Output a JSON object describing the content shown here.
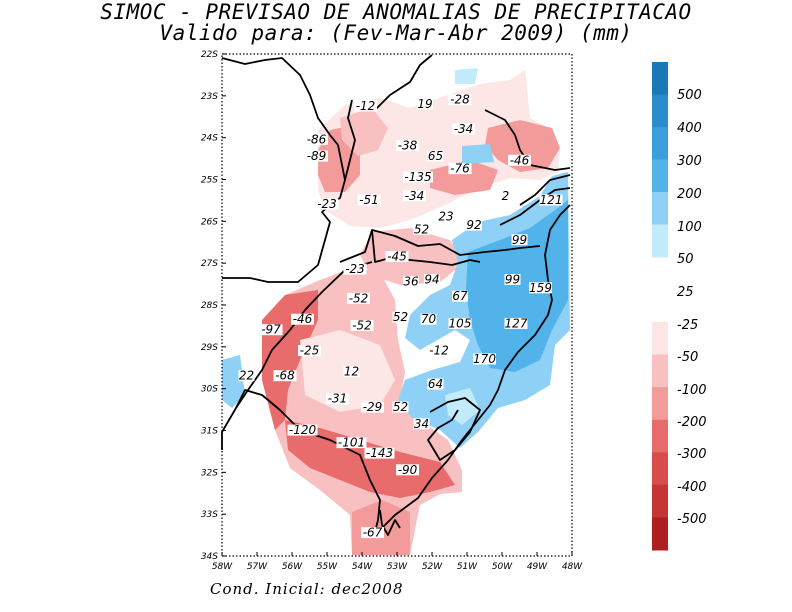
{
  "title": {
    "line1": "SIMOC - PREVISAO DE ANOMALIAS DE PRECIPITACAO",
    "line2": "Valido para: (Fev-Mar-Abr 2009) (mm)"
  },
  "footer": "Cond. Inicial: dec2008",
  "map": {
    "lat_labels": [
      "22S",
      "23S",
      "24S",
      "25S",
      "26S",
      "27S",
      "28S",
      "29S",
      "30S",
      "31S",
      "32S",
      "33S",
      "34S"
    ],
    "lon_labels": [
      "58W",
      "57W",
      "56W",
      "55W",
      "54W",
      "53W",
      "52W",
      "51W",
      "50W",
      "49W",
      "48W"
    ],
    "lat_values": [
      -22,
      -23,
      -24,
      -25,
      -26,
      -27,
      -28,
      -29,
      -30,
      -31,
      -32,
      -33,
      -34
    ],
    "lon_values": [
      -58,
      -57,
      -56,
      -55,
      -54,
      -53,
      -52,
      -51,
      -50,
      -49,
      -48
    ],
    "anomaly_values": [
      {
        "text": "-12",
        "lon": -53.9,
        "lat": -23.3
      },
      {
        "text": "19",
        "lon": -52.2,
        "lat": -23.25
      },
      {
        "text": "-28",
        "lon": -51.2,
        "lat": -23.15
      },
      {
        "text": "-34",
        "lon": -51.1,
        "lat": -23.85
      },
      {
        "text": "-86",
        "lon": -55.3,
        "lat": -24.1
      },
      {
        "text": "-89",
        "lon": -55.3,
        "lat": -24.5
      },
      {
        "text": "-38",
        "lon": -52.7,
        "lat": -24.25
      },
      {
        "text": "65",
        "lon": -51.9,
        "lat": -24.5
      },
      {
        "text": "-46",
        "lon": -49.5,
        "lat": -24.6
      },
      {
        "text": "-76",
        "lon": -51.2,
        "lat": -24.8
      },
      {
        "text": "-135",
        "lon": -52.4,
        "lat": -25.0
      },
      {
        "text": "-51",
        "lon": -53.8,
        "lat": -25.55
      },
      {
        "text": "-34",
        "lon": -52.5,
        "lat": -25.45
      },
      {
        "text": "2",
        "lon": -49.9,
        "lat": -25.45
      },
      {
        "text": "121",
        "lon": -48.6,
        "lat": -25.55
      },
      {
        "text": "-23",
        "lon": -55.0,
        "lat": -25.65
      },
      {
        "text": "23",
        "lon": -51.6,
        "lat": -25.95
      },
      {
        "text": "92",
        "lon": -50.8,
        "lat": -26.15
      },
      {
        "text": "52",
        "lon": -52.3,
        "lat": -26.25
      },
      {
        "text": "99",
        "lon": -49.5,
        "lat": -26.5
      },
      {
        "text": "-45",
        "lon": -53.0,
        "lat": -26.9
      },
      {
        "text": "-23",
        "lon": -54.2,
        "lat": -27.2
      },
      {
        "text": "36",
        "lon": -52.6,
        "lat": -27.5
      },
      {
        "text": "94",
        "lon": -52.0,
        "lat": -27.45
      },
      {
        "text": "99",
        "lon": -49.7,
        "lat": -27.45
      },
      {
        "text": "159",
        "lon": -48.9,
        "lat": -27.65
      },
      {
        "text": "67",
        "lon": -51.2,
        "lat": -27.85
      },
      {
        "text": "-52",
        "lon": -54.1,
        "lat": -27.9
      },
      {
        "text": "-46",
        "lon": -55.7,
        "lat": -28.4
      },
      {
        "text": "-97",
        "lon": -56.6,
        "lat": -28.65
      },
      {
        "text": "52",
        "lon": -52.9,
        "lat": -28.35
      },
      {
        "text": "70",
        "lon": -52.1,
        "lat": -28.4
      },
      {
        "text": "105",
        "lon": -51.2,
        "lat": -28.5
      },
      {
        "text": "127",
        "lon": -49.6,
        "lat": -28.5
      },
      {
        "text": "-52",
        "lon": -54.0,
        "lat": -28.55
      },
      {
        "text": "-25",
        "lon": -55.5,
        "lat": -29.15
      },
      {
        "text": "-12",
        "lon": -51.8,
        "lat": -29.15
      },
      {
        "text": "170",
        "lon": -50.5,
        "lat": -29.35
      },
      {
        "text": "12",
        "lon": -54.3,
        "lat": -29.65
      },
      {
        "text": "22",
        "lon": -57.3,
        "lat": -29.75
      },
      {
        "text": "-68",
        "lon": -56.2,
        "lat": -29.75
      },
      {
        "text": "64",
        "lon": -51.9,
        "lat": -29.95
      },
      {
        "text": "-31",
        "lon": -54.7,
        "lat": -30.3
      },
      {
        "text": "-29",
        "lon": -53.7,
        "lat": -30.5
      },
      {
        "text": "52",
        "lon": -52.9,
        "lat": -30.5
      },
      {
        "text": "34",
        "lon": -52.3,
        "lat": -30.9
      },
      {
        "text": "-120",
        "lon": -55.7,
        "lat": -31.05
      },
      {
        "text": "-101",
        "lon": -54.3,
        "lat": -31.35
      },
      {
        "text": "-143",
        "lon": -53.5,
        "lat": -31.6
      },
      {
        "text": "-90",
        "lon": -52.7,
        "lat": -32.0
      },
      {
        "text": "-67",
        "lon": -53.7,
        "lat": -33.5
      }
    ]
  },
  "colorbar": {
    "positive_labels": [
      "500",
      "400",
      "300",
      "200",
      "100",
      "50",
      "25"
    ],
    "negative_labels": [
      "-25",
      "-50",
      "-100",
      "-200",
      "-300",
      "-400",
      "-500"
    ],
    "positive_colors": [
      "#1878b8",
      "#2a8ccc",
      "#3a9fdc",
      "#52b2ea",
      "#8fd0f6",
      "#c2ecfc"
    ],
    "negative_colors": [
      "#fde6e6",
      "#f8c0c0",
      "#f39a9a",
      "#e86c6c",
      "#d84c4c",
      "#c63434",
      "#ae1f1f"
    ]
  }
}
